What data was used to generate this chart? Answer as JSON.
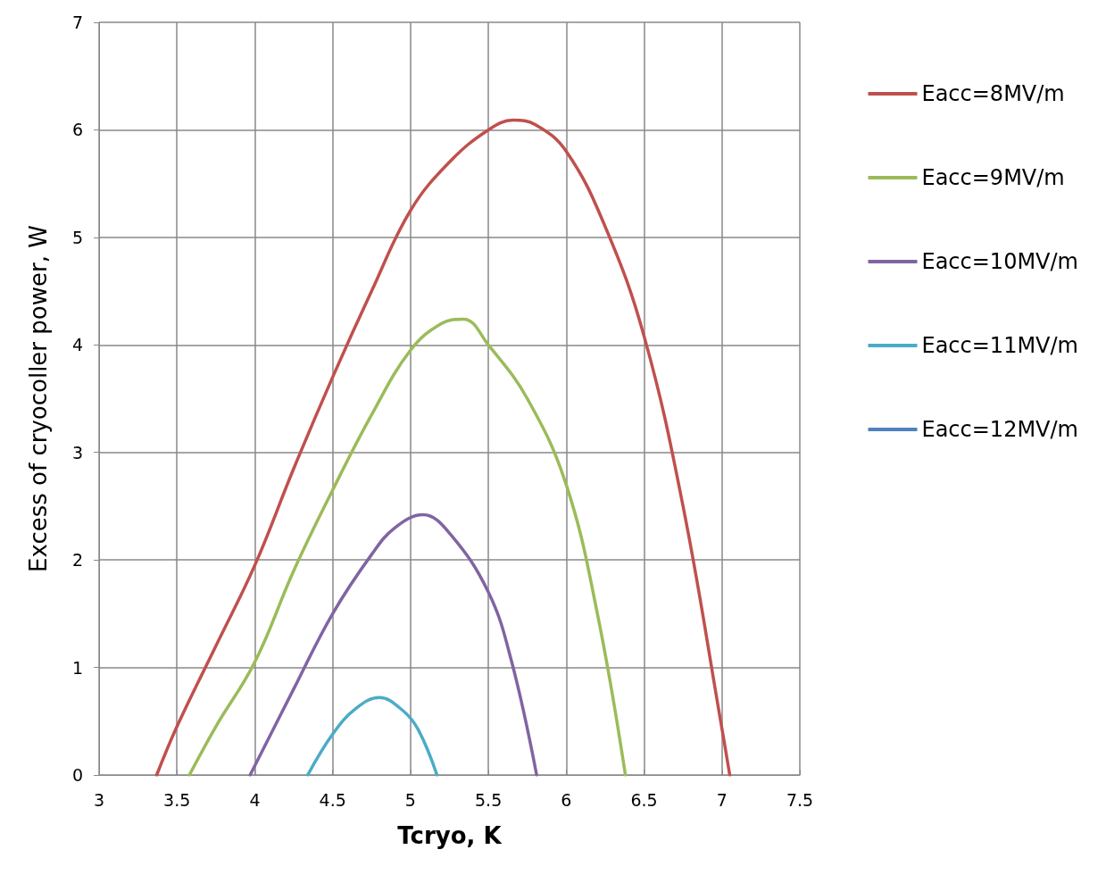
{
  "chart_data": {
    "type": "line",
    "xlabel": "Tcryo, K",
    "ylabel": "Excess of cryocoller power, W",
    "xlim": [
      3,
      7.5
    ],
    "xticks": [
      3,
      3.5,
      4,
      4.5,
      5,
      5.5,
      6,
      6.5,
      7,
      7.5
    ],
    "ylim": [
      0,
      7
    ],
    "yticks": [
      0,
      1,
      2,
      3,
      4,
      5,
      6,
      7
    ],
    "grid": true,
    "legend": "right",
    "marker": "none",
    "line_style": "solid",
    "series": [
      {
        "name": "Eacc=8MV/m",
        "color": "#c0504d",
        "x": [
          3.37,
          3.5,
          3.75,
          4,
          4.25,
          4.5,
          4.75,
          5,
          5.25,
          5.5,
          5.66,
          5.8,
          6,
          6.25,
          6.5,
          6.75,
          7,
          7.05
        ],
        "values": [
          0,
          0.45,
          1.2,
          1.95,
          2.85,
          3.7,
          4.5,
          5.25,
          5.7,
          6.0,
          6.09,
          6.05,
          5.8,
          5.1,
          4.08,
          2.5,
          0.43,
          0
        ]
      },
      {
        "name": "Eacc=9MV/m",
        "color": "#9bbb59",
        "x": [
          3.58,
          3.75,
          4,
          4.25,
          4.5,
          4.75,
          5,
          5.2,
          5.34,
          5.5,
          5.75,
          6,
          6.2,
          6.38
        ],
        "values": [
          0,
          0.45,
          1.05,
          1.9,
          2.65,
          3.35,
          3.95,
          4.2,
          4.24,
          4.0,
          3.5,
          2.7,
          1.5,
          0
        ]
      },
      {
        "name": "Eacc=10MV/m",
        "color": "#8064a2",
        "x": [
          3.97,
          4.25,
          4.5,
          4.75,
          4.9,
          5.08,
          5.25,
          5.5,
          5.65,
          5.81
        ],
        "values": [
          0,
          0.8,
          1.5,
          2.05,
          2.3,
          2.42,
          2.25,
          1.7,
          1.05,
          0
        ]
      },
      {
        "name": "Eacc=11MV/m",
        "color": "#4bacc6",
        "x": [
          4.34,
          4.5,
          4.65,
          4.8,
          4.95,
          5.05,
          5.17
        ],
        "values": [
          0,
          0.38,
          0.62,
          0.72,
          0.6,
          0.42,
          0
        ]
      },
      {
        "name": "Eacc=12MV/m",
        "color": "#4f81bd"
      }
    ]
  }
}
